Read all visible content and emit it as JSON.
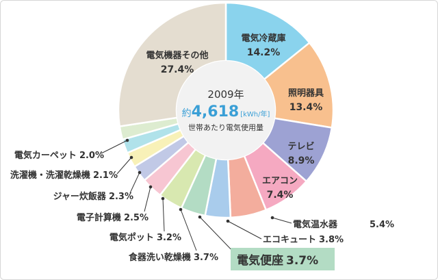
{
  "chart_data": {
    "type": "pie",
    "center": {
      "year": "2009年",
      "prefix": "約",
      "value": "4,618",
      "unit": "[kWh/年]",
      "caption": "世帯あたり電気使用量"
    },
    "slices": [
      {
        "label": "電気冷蔵庫",
        "value": 14.2,
        "value_text": "14.2%",
        "color": "#8ad3ed"
      },
      {
        "label": "照明器具",
        "value": 13.4,
        "value_text": "13.4%",
        "color": "#f8c08e"
      },
      {
        "label": "テレビ",
        "value": 8.9,
        "value_text": "8.9%",
        "color": "#9da2d3"
      },
      {
        "label": "エアコン",
        "value": 7.4,
        "value_text": "7.4%",
        "color": "#f5a9c1"
      },
      {
        "label": "電気温水器",
        "value": 5.4,
        "value_text": "5.4%",
        "color": "#f3ad9d"
      },
      {
        "label": "エコキュート",
        "value": 3.8,
        "value_text": "3.8%",
        "color": "#a9ccec"
      },
      {
        "label": "電気便座",
        "value": 3.7,
        "value_text": "3.7%",
        "color": "#b3dcc4",
        "highlight": true
      },
      {
        "label": "食器洗い乾燥機",
        "value": 3.7,
        "value_text": "3.7%",
        "color": "#d8e8b0"
      },
      {
        "label": "電気ポット",
        "value": 3.2,
        "value_text": "3.2%",
        "color": "#f7c6d2"
      },
      {
        "label": "電子計算機",
        "value": 2.5,
        "value_text": "2.5%",
        "color": "#c1c9e6"
      },
      {
        "label": "ジャー炊飯器",
        "value": 2.3,
        "value_text": "2.3%",
        "color": "#f8f1b8"
      },
      {
        "label": "洗濯機・洗濯乾燥機",
        "value": 2.1,
        "value_text": "2.1%",
        "color": "#b0e2ea"
      },
      {
        "label": "電気カーペット",
        "value": 2.0,
        "value_text": "2.0%",
        "color": "#ddecd0"
      },
      {
        "label": "電気機器その他",
        "value": 27.4,
        "value_text": "27.4%",
        "color": "#e4ddd0"
      }
    ]
  },
  "colors": {
    "center_fill": "#f2f2f2",
    "value_accent": "#3a9fd6",
    "highlight_box": "#b3dcc4",
    "leader": "#333333"
  }
}
